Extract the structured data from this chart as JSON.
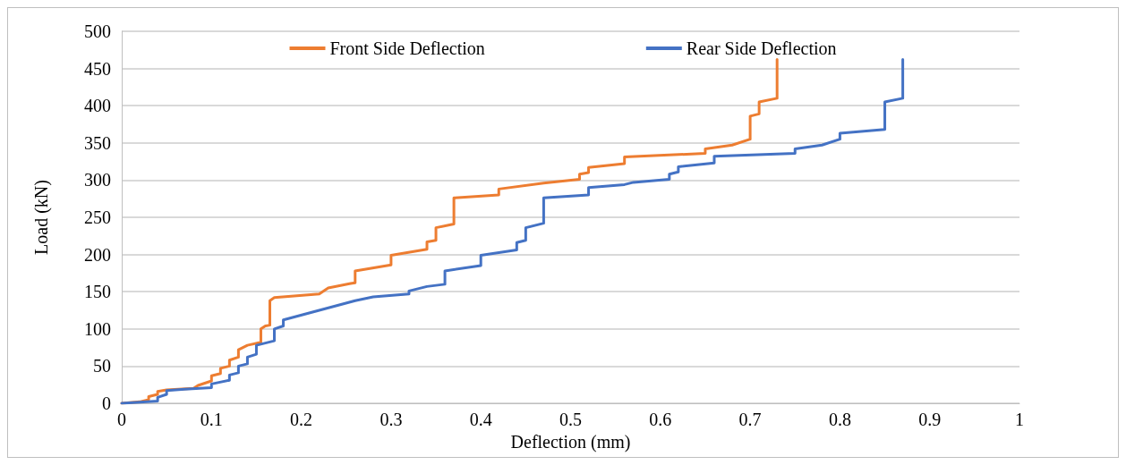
{
  "chart_data": {
    "type": "line",
    "xlabel": "Deflection (mm)",
    "ylabel": "Load (kN)",
    "xlim": [
      0,
      1
    ],
    "xticks": [
      0,
      0.1,
      0.2,
      0.3,
      0.4,
      0.5,
      0.6,
      0.7,
      0.8,
      0.9,
      1
    ],
    "ylim": [
      0,
      500
    ],
    "yticks": [
      0,
      50,
      100,
      150,
      200,
      250,
      300,
      350,
      400,
      450,
      500
    ],
    "grid": "y",
    "legend": "top",
    "marker": "none",
    "line_style": "solid",
    "series": [
      {
        "name": "Front Side Deflection",
        "color": "#ed7d31",
        "x": [
          0,
          0.02,
          0.03,
          0.03,
          0.04,
          0.04,
          0.05,
          0.08,
          0.085,
          0.1,
          0.1,
          0.11,
          0.11,
          0.12,
          0.12,
          0.13,
          0.13,
          0.14,
          0.155,
          0.155,
          0.16,
          0.165,
          0.165,
          0.17,
          0.22,
          0.23,
          0.255,
          0.26,
          0.26,
          0.3,
          0.3,
          0.34,
          0.34,
          0.35,
          0.35,
          0.37,
          0.37,
          0.42,
          0.42,
          0.47,
          0.51,
          0.51,
          0.52,
          0.52,
          0.56,
          0.56,
          0.65,
          0.65,
          0.68,
          0.7,
          0.7,
          0.71,
          0.71,
          0.73,
          0.73
        ],
        "values": [
          0,
          2,
          5,
          9,
          12,
          16,
          18,
          20,
          24,
          30,
          37,
          40,
          47,
          50,
          58,
          62,
          72,
          78,
          82,
          100,
          104,
          105,
          138,
          142,
          147,
          155,
          161,
          162,
          178,
          186,
          199,
          207,
          217,
          219,
          236,
          241,
          276,
          280,
          288,
          296,
          301,
          308,
          310,
          317,
          322,
          331,
          336,
          342,
          347,
          355,
          386,
          389,
          405,
          410,
          462
        ]
      },
      {
        "name": "Rear Side Deflection",
        "color": "#4472c4",
        "x": [
          0,
          0.04,
          0.04,
          0.05,
          0.05,
          0.07,
          0.1,
          0.1,
          0.12,
          0.12,
          0.13,
          0.13,
          0.14,
          0.14,
          0.15,
          0.15,
          0.17,
          0.17,
          0.18,
          0.18,
          0.26,
          0.28,
          0.32,
          0.32,
          0.34,
          0.36,
          0.36,
          0.4,
          0.4,
          0.44,
          0.44,
          0.45,
          0.45,
          0.47,
          0.47,
          0.52,
          0.52,
          0.56,
          0.57,
          0.61,
          0.61,
          0.62,
          0.62,
          0.66,
          0.66,
          0.75,
          0.75,
          0.78,
          0.8,
          0.8,
          0.85,
          0.85,
          0.87,
          0.87
        ],
        "values": [
          0,
          3,
          8,
          12,
          17,
          19,
          21,
          26,
          31,
          38,
          41,
          50,
          53,
          62,
          66,
          78,
          84,
          100,
          104,
          112,
          138,
          143,
          147,
          151,
          157,
          160,
          178,
          185,
          199,
          206,
          216,
          219,
          236,
          242,
          276,
          280,
          290,
          294,
          297,
          301,
          308,
          311,
          318,
          323,
          332,
          336,
          342,
          347,
          355,
          363,
          368,
          405,
          410,
          462
        ]
      }
    ]
  }
}
